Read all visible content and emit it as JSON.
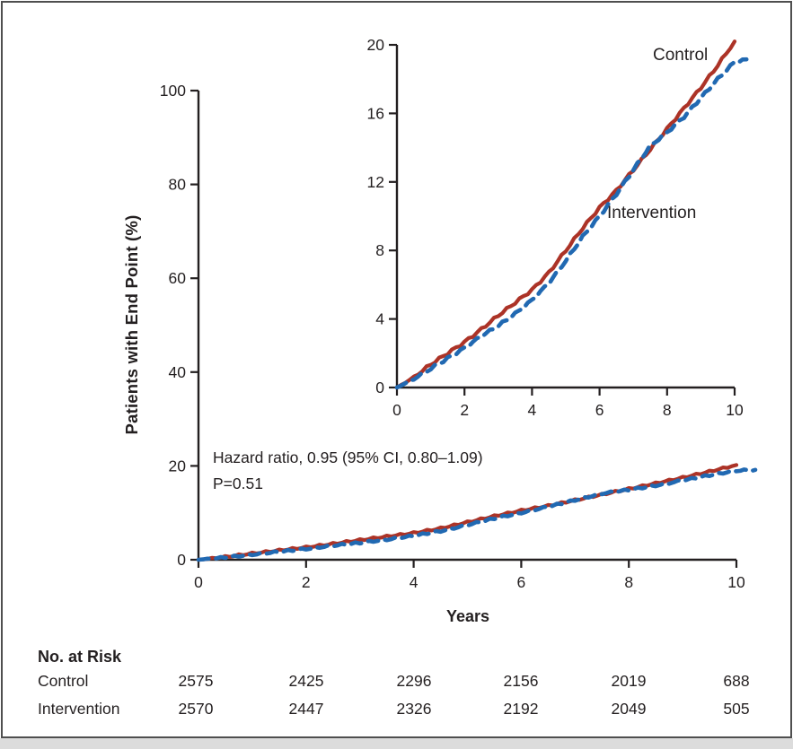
{
  "chart_data": {
    "type": "line",
    "title": "",
    "xlabel": "Years",
    "ylabel": "Patients with End Point (%)",
    "grid": false,
    "legend_position": "inline-labels",
    "annotation": {
      "line1": "Hazard ratio, 0.95 (95% CI, 0.80–1.09)",
      "line2": "P=0.51"
    },
    "main_panel": {
      "xlim": [
        0,
        10
      ],
      "ylim": [
        0,
        100
      ],
      "xticks": [
        0,
        2,
        4,
        6,
        8,
        10
      ],
      "yticks": [
        0,
        20,
        40,
        60,
        80,
        100
      ]
    },
    "inset_panel": {
      "xlim": [
        0,
        10
      ],
      "ylim": [
        0,
        20
      ],
      "xticks": [
        0,
        2,
        4,
        6,
        8,
        10
      ],
      "yticks": [
        0,
        4,
        8,
        12,
        16,
        20
      ]
    },
    "series": [
      {
        "name": "Control",
        "color": "#ac3327",
        "line_style": "solid",
        "x": [
          0,
          0.5,
          1,
          1.5,
          2,
          2.5,
          3,
          3.5,
          4,
          4.5,
          5,
          5.5,
          6,
          6.5,
          7,
          7.5,
          8,
          8.5,
          9,
          9.5,
          10
        ],
        "values": [
          0,
          0.6,
          1.35,
          2.0,
          2.65,
          3.4,
          4.2,
          4.95,
          5.7,
          6.7,
          8.0,
          9.3,
          10.5,
          11.5,
          12.7,
          13.9,
          15.1,
          16.3,
          17.5,
          18.8,
          20.2
        ]
      },
      {
        "name": "Intervention",
        "color": "#2169b2",
        "line_style": "dashed",
        "x": [
          0,
          0.5,
          1,
          1.5,
          2,
          2.5,
          3,
          3.5,
          4,
          4.5,
          5,
          5.5,
          6,
          6.5,
          7,
          7.5,
          8,
          8.5,
          9,
          9.5,
          10,
          10.35
        ],
        "values": [
          0,
          0.5,
          1.1,
          1.7,
          2.3,
          3.0,
          3.6,
          4.3,
          5.1,
          6.1,
          7.4,
          8.8,
          10.0,
          11.3,
          12.7,
          14.1,
          14.9,
          15.8,
          16.9,
          18.0,
          19.0,
          19.15
        ]
      }
    ]
  },
  "risk_table": {
    "title": "No. at Risk",
    "time_points": [
      0,
      2,
      4,
      6,
      8,
      10
    ],
    "rows": [
      {
        "label": "Control",
        "values": [
          "2575",
          "2425",
          "2296",
          "2156",
          "2019",
          "688"
        ]
      },
      {
        "label": "Intervention",
        "values": [
          "2570",
          "2447",
          "2326",
          "2192",
          "2049",
          "505"
        ]
      }
    ]
  }
}
